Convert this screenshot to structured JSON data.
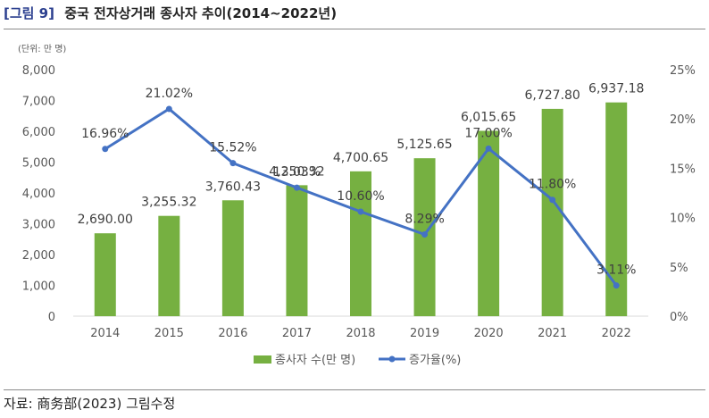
{
  "header": {
    "figure_label": "[그림 9]",
    "title": "중국 전자상거래 종사자 추이(2014~2022년)"
  },
  "source": "자료: 商务部(2023) 그림수정",
  "colors": {
    "bar": "#76b041",
    "line": "#4472c4",
    "grid": "#d9d9d9",
    "text": "#595959"
  },
  "chart_data": {
    "type": "bar",
    "unit_note": "(단위: 만 명)",
    "categories": [
      "2014",
      "2015",
      "2016",
      "2017",
      "2018",
      "2019",
      "2020",
      "2021",
      "2022"
    ],
    "series": [
      {
        "name": "종사자 수(만 명)",
        "type": "bar",
        "axis": "left",
        "values": [
          2690.0,
          3255.32,
          3760.43,
          4250.32,
          4700.65,
          5125.65,
          6015.65,
          6727.8,
          6937.18
        ],
        "labels": [
          "2,690.00",
          "3,255.32",
          "3,760.43",
          "4,250.32",
          "4,700.65",
          "5,125.65",
          "6,015.65",
          "6,727.80",
          "6,937.18"
        ]
      },
      {
        "name": "증가율(%)",
        "type": "line",
        "axis": "right",
        "values": [
          16.96,
          21.02,
          15.52,
          13.03,
          10.6,
          8.29,
          17.0,
          11.8,
          3.11
        ],
        "labels": [
          "16.96%",
          "21.02%",
          "15.52%",
          "13.03%",
          "10.60%",
          "8.29%",
          "17.00%",
          "11.80%",
          "3.11%"
        ]
      }
    ],
    "y_left": {
      "lim": [
        0,
        8000
      ],
      "ticks": [
        0,
        1000,
        2000,
        3000,
        4000,
        5000,
        6000,
        7000,
        8000
      ],
      "tick_labels": [
        "0",
        "1,000",
        "2,000",
        "3,000",
        "4,000",
        "5,000",
        "6,000",
        "7,000",
        "8,000"
      ]
    },
    "y_right": {
      "lim": [
        0,
        25
      ],
      "ticks": [
        0,
        5,
        10,
        15,
        20,
        25
      ],
      "tick_labels": [
        "0%",
        "5%",
        "10%",
        "15%",
        "20%",
        "25%"
      ]
    },
    "grid": false,
    "legend": "bottom-center"
  }
}
